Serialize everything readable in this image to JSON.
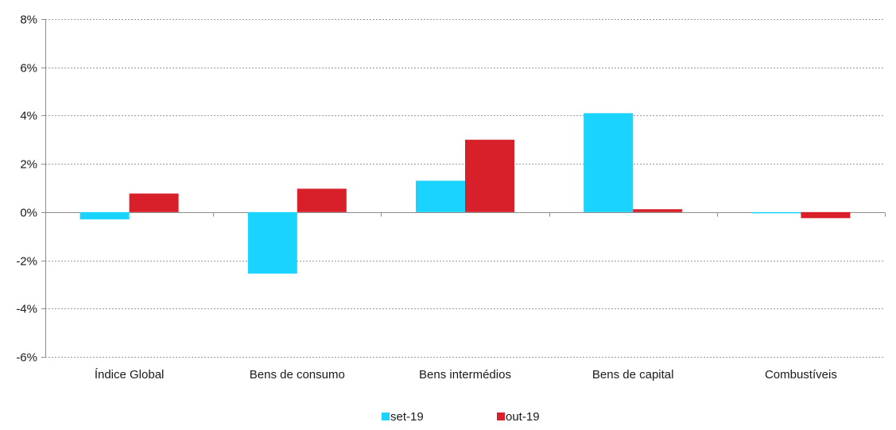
{
  "chart_data": {
    "type": "bar",
    "categories": [
      "Índice Global",
      "Bens de consumo",
      "Bens intermédios",
      "Bens de capital",
      "Combustíveis"
    ],
    "series": [
      {
        "name": "set-19",
        "color": "#1ad4ff",
        "values": [
          -0.3,
          -2.55,
          1.3,
          4.1,
          -0.05
        ]
      },
      {
        "name": "out-19",
        "color": "#d8202a",
        "values": [
          0.77,
          0.97,
          3.0,
          0.12,
          -0.25
        ]
      }
    ],
    "ylim": [
      -6,
      8
    ],
    "yticks": [
      -6,
      -4,
      -2,
      0,
      2,
      4,
      6,
      8
    ],
    "ytick_labels": [
      "-6%",
      "-4%",
      "-2%",
      "0%",
      "2%",
      "4%",
      "6%",
      "8%"
    ],
    "grid": true,
    "legend_position": "bottom",
    "title": "",
    "xlabel": "",
    "ylabel": ""
  }
}
